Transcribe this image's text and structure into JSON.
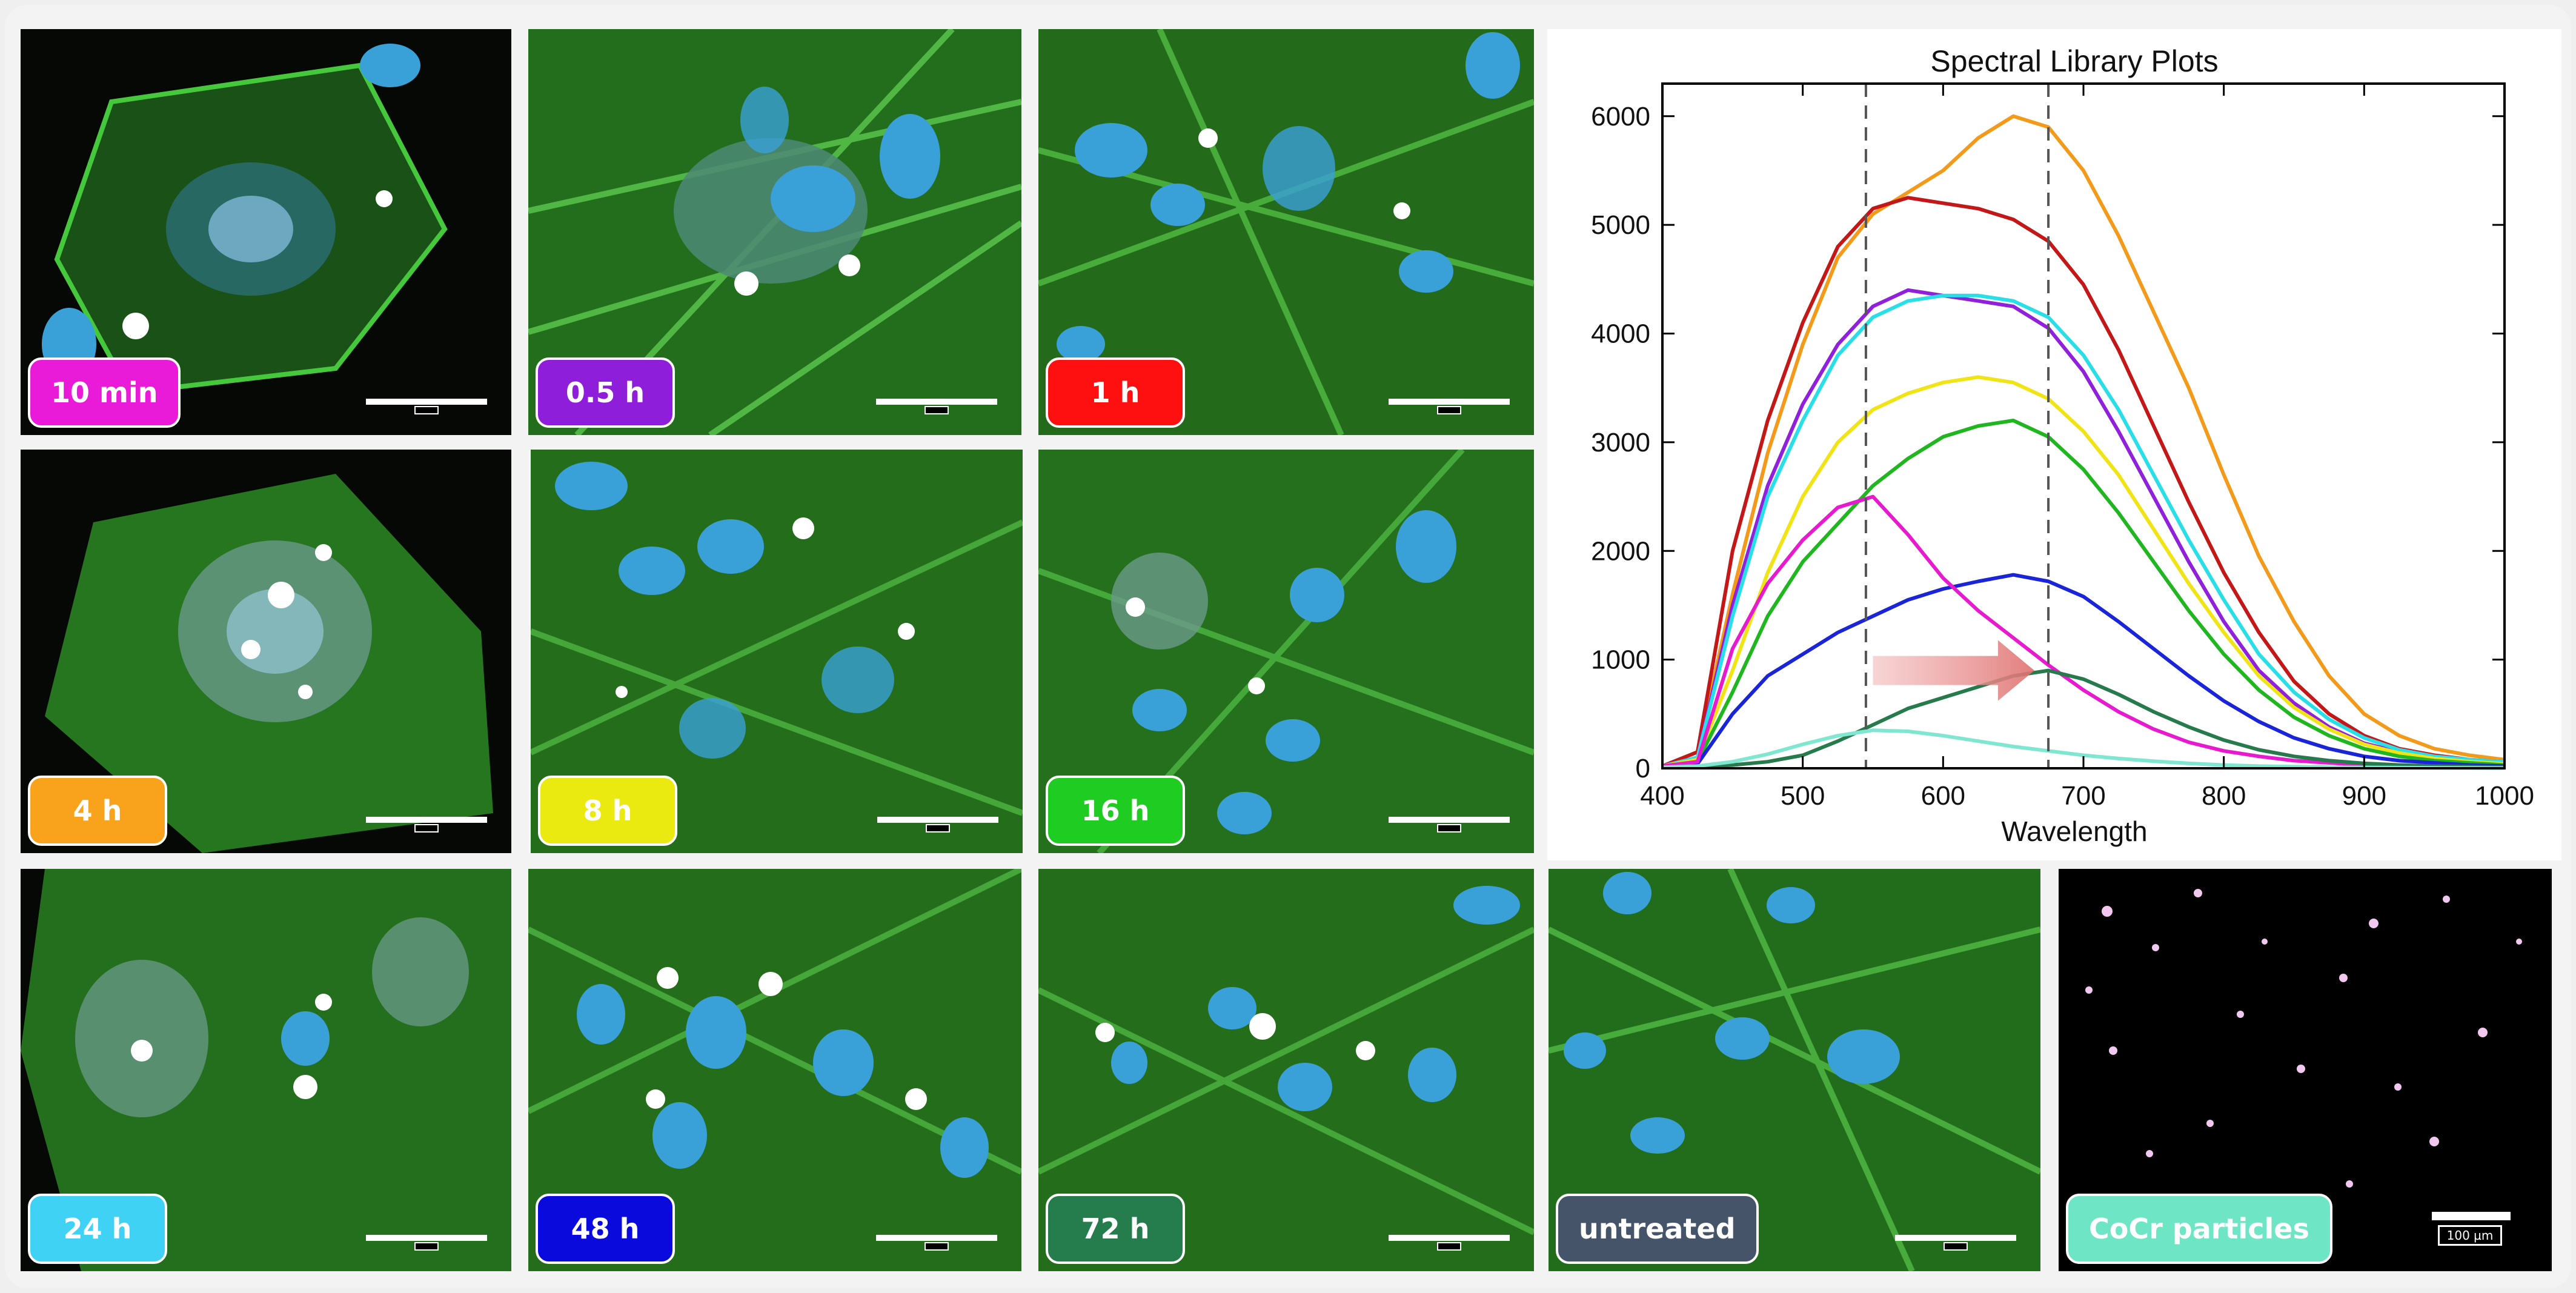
{
  "panels": [
    {
      "id": "10min",
      "label": "10 min",
      "color": "#e91ad8"
    },
    {
      "id": "05h",
      "label": "0.5 h",
      "color": "#8e1ed9"
    },
    {
      "id": "1h",
      "label": "1 h",
      "color": "#ff1010"
    },
    {
      "id": "4h",
      "label": "4 h",
      "color": "#f9a21b"
    },
    {
      "id": "8h",
      "label": "8 h",
      "color": "#eaea10"
    },
    {
      "id": "16h",
      "label": "16 h",
      "color": "#1fcc22"
    },
    {
      "id": "24h",
      "label": "24 h",
      "color": "#3fd2f5"
    },
    {
      "id": "48h",
      "label": "48 h",
      "color": "#0a0adc"
    },
    {
      "id": "72h",
      "label": "72 h",
      "color": "#257c4d"
    },
    {
      "id": "untreated",
      "label": "untreated",
      "color": "#46546a"
    },
    {
      "id": "cocr",
      "label": "CoCr particles",
      "color": "#6ee6c6"
    }
  ],
  "cocr_scale_label": "100 µm",
  "chart_data": {
    "type": "line",
    "title": "Spectral Library Plots",
    "xlabel": "Wavelength",
    "ylabel": "",
    "xlim": [
      400,
      1000
    ],
    "ylim": [
      0,
      6300
    ],
    "xticks": [
      400,
      500,
      600,
      700,
      800,
      900,
      1000
    ],
    "yticks": [
      0,
      1000,
      2000,
      3000,
      4000,
      5000,
      6000
    ],
    "vlines": [
      545,
      675
    ],
    "arrow": {
      "from": 550,
      "to": 665,
      "y": 900
    },
    "x": [
      400,
      425,
      450,
      475,
      500,
      525,
      550,
      575,
      600,
      625,
      650,
      675,
      700,
      725,
      750,
      775,
      800,
      825,
      850,
      875,
      900,
      925,
      950,
      975,
      1000
    ],
    "series": [
      {
        "color": "#f39a1b",
        "values": [
          20,
          150,
          1600,
          2900,
          3900,
          4700,
          5100,
          5300,
          5500,
          5800,
          6000,
          5900,
          5500,
          4900,
          4200,
          3500,
          2700,
          1950,
          1350,
          850,
          500,
          300,
          180,
          120,
          80
        ]
      },
      {
        "color": "#c41818",
        "values": [
          20,
          150,
          2000,
          3200,
          4100,
          4800,
          5150,
          5250,
          5200,
          5150,
          5050,
          4850,
          4450,
          3850,
          3150,
          2450,
          1800,
          1250,
          800,
          500,
          300,
          180,
          120,
          80,
          60
        ]
      },
      {
        "color": "#9020dc",
        "values": [
          20,
          100,
          1500,
          2600,
          3350,
          3900,
          4250,
          4400,
          4350,
          4300,
          4250,
          4050,
          3650,
          3100,
          2500,
          1900,
          1350,
          900,
          600,
          380,
          230,
          150,
          100,
          70,
          50
        ]
      },
      {
        "color": "#28dfe8",
        "values": [
          20,
          100,
          1400,
          2500,
          3200,
          3800,
          4150,
          4300,
          4350,
          4350,
          4300,
          4150,
          3800,
          3300,
          2700,
          2100,
          1550,
          1050,
          700,
          450,
          280,
          170,
          110,
          80,
          60
        ]
      },
      {
        "color": "#f0e414",
        "values": [
          20,
          80,
          900,
          1800,
          2500,
          3000,
          3300,
          3450,
          3550,
          3600,
          3550,
          3400,
          3100,
          2700,
          2200,
          1700,
          1250,
          850,
          560,
          360,
          220,
          140,
          90,
          60,
          40
        ]
      },
      {
        "color": "#1fb61f",
        "values": [
          20,
          60,
          700,
          1400,
          1900,
          2250,
          2600,
          2850,
          3050,
          3150,
          3200,
          3050,
          2750,
          2350,
          1900,
          1450,
          1050,
          720,
          470,
          300,
          180,
          110,
          70,
          50,
          30
        ]
      },
      {
        "color": "#1a24d8",
        "values": [
          20,
          40,
          500,
          850,
          1050,
          1250,
          1400,
          1550,
          1650,
          1720,
          1780,
          1720,
          1580,
          1350,
          1100,
          850,
          620,
          430,
          280,
          180,
          110,
          70,
          50,
          30,
          20
        ]
      },
      {
        "color": "#e81ad0",
        "values": [
          20,
          60,
          1100,
          1700,
          2100,
          2400,
          2500,
          2150,
          1750,
          1450,
          1200,
          950,
          720,
          520,
          360,
          240,
          160,
          110,
          70,
          50,
          30,
          20,
          15,
          10,
          10
        ]
      },
      {
        "color": "#267a4c",
        "values": [
          10,
          15,
          30,
          60,
          120,
          250,
          400,
          550,
          650,
          750,
          850,
          900,
          820,
          680,
          520,
          380,
          260,
          170,
          110,
          70,
          45,
          30,
          20,
          15,
          10
        ]
      },
      {
        "color": "#7fe6d0",
        "values": [
          10,
          20,
          60,
          130,
          220,
          300,
          350,
          340,
          300,
          250,
          200,
          160,
          120,
          90,
          65,
          45,
          30,
          20,
          15,
          10,
          8,
          6,
          5,
          4,
          3
        ]
      }
    ]
  }
}
